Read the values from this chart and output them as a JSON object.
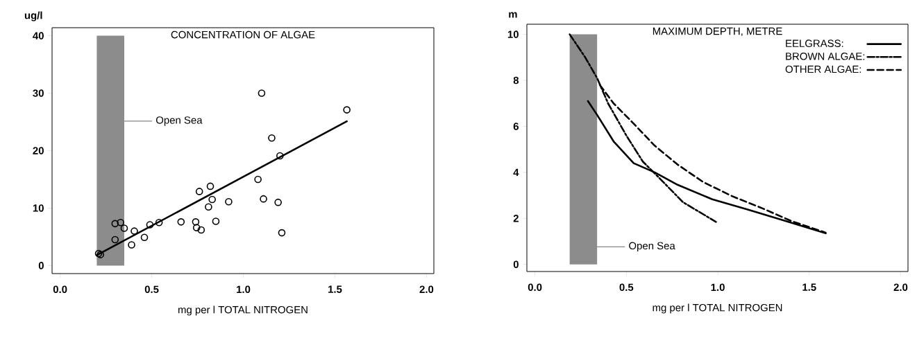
{
  "chart_data": [
    {
      "type": "scatter",
      "title": "CONCENTRATION OF ALGAE",
      "xlabel": "mg per l TOTAL NITROGEN",
      "ylabel": "ug/l",
      "xlim": [
        -0.044,
        2.04
      ],
      "ylim": [
        -1.4,
        41.4
      ],
      "xticks": [
        {
          "value": 0,
          "label": "0.0"
        },
        {
          "value": 0.5,
          "label": "0.5"
        },
        {
          "value": 1,
          "label": "1.0"
        },
        {
          "value": 1.5,
          "label": "1.5"
        },
        {
          "value": 2,
          "label": "2.0"
        }
      ],
      "yticks": [
        0,
        10,
        20,
        30,
        40
      ],
      "bands": [
        {
          "axis": "x",
          "from": 0.2,
          "to": 0.35,
          "label": "Open Sea",
          "color": "#8c8c8c"
        }
      ],
      "series": [
        {
          "type": "scatter",
          "color": "#000000",
          "marker": "circle",
          "x": [
            0.21,
            0.22,
            0.3,
            0.33,
            0.35,
            0.3,
            0.39,
            0.405,
            0.46,
            0.49,
            0.54,
            0.66,
            0.74,
            0.745,
            0.77,
            0.76,
            0.82,
            0.83,
            0.81,
            0.85,
            0.92,
            1.08,
            1.11,
            1.19,
            1.21,
            1.2,
            1.155,
            1.1,
            1.565
          ],
          "values": [
            2.1,
            1.9,
            7.3,
            7.5,
            6.5,
            4.5,
            3.6,
            6.0,
            4.9,
            7.1,
            7.5,
            7.6,
            7.6,
            6.6,
            6.2,
            12.9,
            13.8,
            11.5,
            10.2,
            7.7,
            11.1,
            15.0,
            11.6,
            11.0,
            5.7,
            19.1,
            22.2,
            30.0,
            27.1
          ]
        },
        {
          "type": "line",
          "color": "#000000",
          "line_style": "solid",
          "x": [
            0.2,
            1.565
          ],
          "values": [
            1.8,
            25.1
          ]
        }
      ]
    },
    {
      "type": "line",
      "title": "MAXIMUM DEPTH, METRE",
      "xlabel": "mg per l TOTAL NITROGEN",
      "ylabel": "m",
      "legend": "top right",
      "xlim": [
        -0.044,
        2.04
      ],
      "ylim": [
        -0.31,
        10.44
      ],
      "xticks": [
        {
          "value": 0,
          "label": "0.0"
        },
        {
          "value": 0.5,
          "label": "0.5"
        },
        {
          "value": 1,
          "label": "1.0"
        },
        {
          "value": 1.5,
          "label": "1.5"
        },
        {
          "value": 2,
          "label": "2.0"
        }
      ],
      "yticks": [
        0,
        2,
        4,
        6,
        8,
        10
      ],
      "bands": [
        {
          "axis": "x",
          "from": 0.19,
          "to": 0.34,
          "label": "Open Sea",
          "color": "#8c8c8c"
        }
      ],
      "series": [
        {
          "name": "EELGRASS:",
          "color": "#000000",
          "line_style": "solid",
          "x": [
            0.29,
            0.34,
            0.43,
            0.54,
            0.655,
            0.78,
            0.97,
            1.16,
            1.37,
            1.59
          ],
          "values": [
            7.1,
            6.5,
            5.35,
            4.4,
            4.0,
            3.46,
            2.83,
            2.39,
            1.89,
            1.35
          ]
        },
        {
          "name": "BROWN ALGAE:",
          "color": "#000000",
          "line_style": "dashdot",
          "x": [
            0.19,
            0.275,
            0.34,
            0.4,
            0.5,
            0.59,
            0.687,
            0.81,
            0.99
          ],
          "values": [
            10,
            9.0,
            8.1,
            7.0,
            5.6,
            4.47,
            3.7,
            2.7,
            1.85
          ]
        },
        {
          "name": "OTHER ALGAE:",
          "color": "#000000",
          "line_style": "dashed",
          "x": [
            0.355,
            0.43,
            0.53,
            0.655,
            0.78,
            0.92,
            1.08,
            1.24,
            1.4,
            1.59
          ],
          "values": [
            7.8,
            7.0,
            6.2,
            5.16,
            4.34,
            3.58,
            2.96,
            2.45,
            1.89,
            1.38
          ]
        }
      ]
    }
  ]
}
